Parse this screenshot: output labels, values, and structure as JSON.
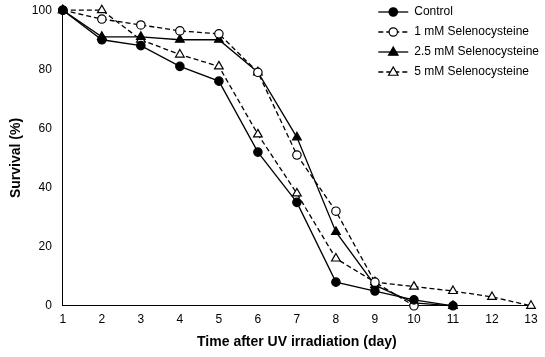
{
  "chart_data": {
    "type": "line",
    "x_label": "Time after UV irradiation (day)",
    "y_label": "Survival (%)",
    "x": [
      1,
      2,
      3,
      4,
      5,
      6,
      7,
      8,
      9,
      10,
      11,
      12,
      13
    ],
    "series": [
      {
        "name": "Control",
        "color": "#000000",
        "marker": "circle",
        "line_style": "solid",
        "values": [
          100,
          90,
          88,
          81,
          76,
          52,
          35,
          8,
          5,
          2,
          0,
          null,
          null
        ]
      },
      {
        "name": "1 mM Selenocysteine",
        "color": "#000000",
        "marker": "circle-open",
        "line_style": "dashed",
        "values": [
          100,
          97,
          95,
          93,
          92,
          79,
          51,
          32,
          8,
          0,
          null,
          null,
          null
        ]
      },
      {
        "name": "2.5 mM Selenocysteine",
        "color": "#000000",
        "marker": "triangle",
        "line_style": "solid",
        "values": [
          100,
          91,
          91,
          90,
          90,
          79,
          57,
          25,
          7,
          1,
          0,
          null,
          null
        ]
      },
      {
        "name": "5 mM Selenocysteine",
        "color": "#000000",
        "marker": "triangle-open",
        "line_style": "dashed",
        "values": [
          100,
          100,
          90,
          85,
          81,
          58,
          38,
          16,
          8,
          6.5,
          5,
          3,
          0
        ]
      }
    ],
    "xlim": [
      1,
      13
    ],
    "xticks": [
      1,
      2,
      3,
      4,
      5,
      6,
      7,
      8,
      9,
      10,
      11,
      12,
      13
    ],
    "ylim": [
      0,
      100
    ],
    "yticks": [
      0,
      20,
      40,
      60,
      80,
      100
    ],
    "grid": false,
    "legend": "upper right"
  }
}
